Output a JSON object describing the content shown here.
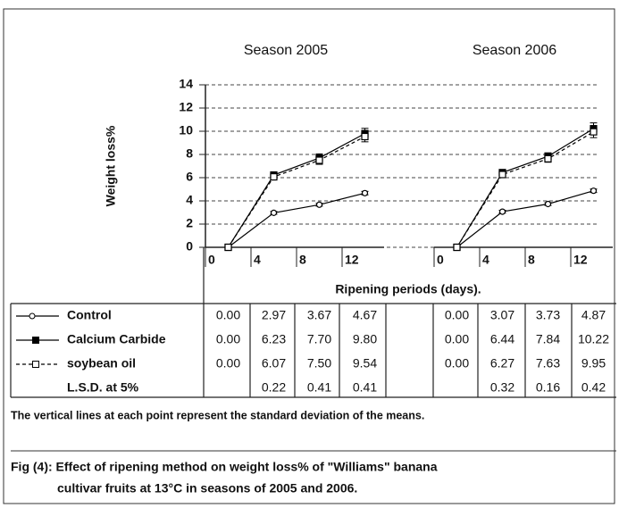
{
  "chart_data": [
    {
      "type": "line",
      "title": "Season 2005",
      "ylabel": "Weight loss%",
      "xlabel": "Ripening periods (days).",
      "x": [
        2,
        6,
        10,
        14
      ],
      "xlim": [
        0,
        16
      ],
      "xticks": [
        0,
        4,
        8,
        12
      ],
      "ylim": [
        0,
        14
      ],
      "yticks": [
        0,
        2,
        4,
        6,
        8,
        10,
        12,
        14
      ],
      "grid": true,
      "series": [
        {
          "name": "Control",
          "color": "#000000",
          "marker": "open-circle",
          "linestyle": "solid",
          "values": [
            0,
            2.97,
            3.67,
            4.67
          ],
          "value_labels": [
            "0.00",
            "2.97",
            "3.67",
            "4.67"
          ],
          "errors": [
            0,
            0.12,
            0.12,
            0.15
          ]
        },
        {
          "name": "Calcium Carbide",
          "color": "#000000",
          "marker": "filled-square",
          "linestyle": "solid",
          "values": [
            0,
            6.23,
            7.7,
            9.8
          ],
          "value_labels": [
            "0.00",
            "6.23",
            "7.70",
            "9.80"
          ],
          "errors": [
            0,
            0.2,
            0.35,
            0.45
          ]
        },
        {
          "name": "soybean oil",
          "color": "#000000",
          "marker": "open-square",
          "linestyle": "dashed",
          "values": [
            0,
            6.07,
            7.5,
            9.54
          ],
          "value_labels": [
            "0.00",
            "6.07",
            "7.50",
            "9.54"
          ],
          "errors": [
            0,
            0.2,
            0.35,
            0.45
          ]
        }
      ],
      "lsd": {
        "name": "L.S.D. at 5%",
        "values": [
          0.22,
          0.41,
          0.41
        ],
        "value_labels": [
          "0.22",
          "0.41",
          "0.41"
        ]
      }
    },
    {
      "type": "line",
      "title": "Season 2006",
      "x": [
        2,
        6,
        10,
        14
      ],
      "xlim": [
        0,
        16
      ],
      "xticks": [
        0,
        4,
        8,
        12
      ],
      "ylim": [
        0,
        14
      ],
      "grid": true,
      "series": [
        {
          "color": "#000000",
          "marker": "open-circle",
          "linestyle": "solid",
          "values": [
            0,
            3.07,
            3.73,
            4.87
          ],
          "value_labels": [
            "0.00",
            "3.07",
            "3.73",
            "4.87"
          ],
          "errors": [
            0,
            0.12,
            0.12,
            0.15
          ]
        },
        {
          "color": "#000000",
          "marker": "filled-square",
          "linestyle": "solid",
          "values": [
            0,
            6.44,
            7.84,
            10.22
          ],
          "value_labels": [
            "0.00",
            "6.44",
            "7.84",
            "10.22"
          ],
          "errors": [
            0,
            0.2,
            0.3,
            0.5
          ]
        },
        {
          "color": "#000000",
          "marker": "open-square",
          "linestyle": "dashed",
          "values": [
            0,
            6.27,
            7.63,
            9.95
          ],
          "value_labels": [
            "0.00",
            "6.27",
            "7.63",
            "9.95"
          ],
          "errors": [
            0,
            0.2,
            0.3,
            0.5
          ]
        }
      ],
      "lsd": {
        "values": [
          0.32,
          0.16,
          0.42
        ],
        "value_labels": [
          "0.32",
          "0.16",
          "0.42"
        ]
      }
    }
  ],
  "footnote": "The vertical lines at each point represent the standard deviation of the means.",
  "caption": [
    "Fig (4): Effect of ripening method on weight loss% of  \"Williams\" banana",
    "cultivar fruits at 13°C in seasons of 2005 and 2006."
  ]
}
